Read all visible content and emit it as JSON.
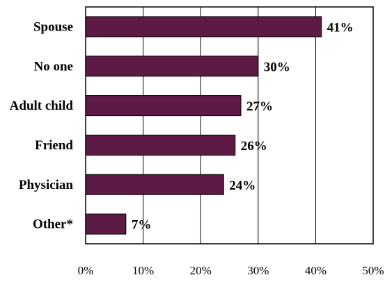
{
  "chart_data": {
    "type": "bar",
    "orientation": "horizontal",
    "categories": [
      "Spouse",
      "No one",
      "Adult child",
      "Friend",
      "Physician",
      "Other*"
    ],
    "values": [
      41,
      30,
      27,
      26,
      24,
      7
    ],
    "value_labels": [
      "41%",
      "30%",
      "27%",
      "26%",
      "24%",
      "7%"
    ],
    "xlim": [
      0,
      50
    ],
    "x_ticks": [
      0,
      10,
      20,
      30,
      40,
      50
    ],
    "x_tick_labels": [
      "0%",
      "10%",
      "20%",
      "30%",
      "40%",
      "50%"
    ],
    "title": "",
    "xlabel": "",
    "ylabel": "",
    "grid": "vertical",
    "legend": "none",
    "bar_color": "#5c1a44"
  }
}
